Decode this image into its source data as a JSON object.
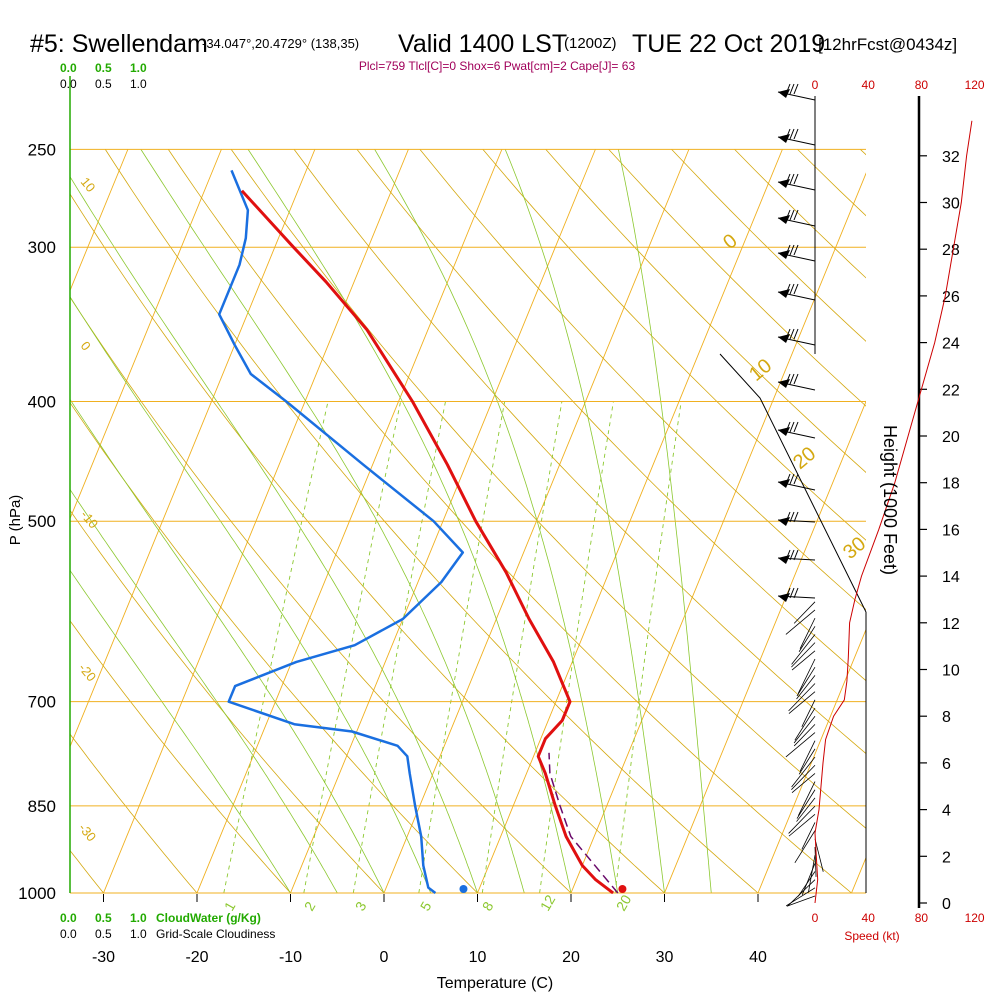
{
  "header": {
    "title": "#5: Swellendam",
    "coords": "-34.047°,20.4729° (138,35)",
    "valid": "Valid 1400 LST",
    "zulu": "(1200Z)",
    "date": "TUE 22 Oct 2019",
    "forecast": "[12hrFcst@0434z]",
    "params": "Plcl=759 Tlcl[C]=0 Shox=6 Pwat[cm]=2 Cape[J]= 63"
  },
  "cloud_scale": {
    "top_green": [
      "0.0",
      "0.5",
      "1.0"
    ],
    "top_black": [
      "0.0",
      "0.5",
      "1.0"
    ],
    "bottom_green": [
      "0.0",
      "0.5",
      "1.0"
    ],
    "bottom_green_label": "CloudWater (g/Kg)",
    "bottom_black": [
      "0.0",
      "0.5",
      "1.0"
    ],
    "bottom_black_label": "Grid-Scale Cloudiness"
  },
  "axes": {
    "xlabel": "Temperature (C)",
    "ylabel": "P (hPa)",
    "height_label": "Height (1000 Feet)",
    "speed_label": "Speed (kt)"
  },
  "colors": {
    "isotherm": "#f0b020",
    "dry_adiabat": "#d4a810",
    "moist_adiabat": "#8cc830",
    "mixing_ratio": "#8cc830",
    "temperature": "#e01010",
    "dewpoint": "#1a6fe0",
    "parcel": "#6a0a6a",
    "speed": "#cc0000",
    "title_params": "#a0005a"
  },
  "chart_data": {
    "type": "skew-t",
    "pressure_ticks": [
      "250",
      "300",
      "400",
      "500",
      "700",
      "850",
      "1000"
    ],
    "temp_ticks": [
      "-30",
      "-20",
      "-10",
      "0",
      "10",
      "20",
      "30",
      "40"
    ],
    "height_ticks": [
      "0",
      "2",
      "4",
      "6",
      "8",
      "10",
      "12",
      "14",
      "16",
      "18",
      "20",
      "22",
      "24",
      "26",
      "28",
      "30",
      "32"
    ],
    "speed_ticks": [
      "0",
      "40",
      "80",
      "120"
    ],
    "dry_adiabat_labels": [
      "10",
      "0",
      "-10",
      "-20",
      "-30",
      "0",
      "10",
      "20",
      "30"
    ],
    "mixing_ratio_labels": [
      "1",
      "2",
      "3",
      "5",
      "8",
      "12",
      "20"
    ],
    "temperature_profile": [
      {
        "p": 1000,
        "t": 24.5
      },
      {
        "p": 975,
        "t": 22
      },
      {
        "p": 950,
        "t": 20
      },
      {
        "p": 900,
        "t": 17
      },
      {
        "p": 850,
        "t": 14.5
      },
      {
        "p": 800,
        "t": 12
      },
      {
        "p": 775,
        "t": 10.5
      },
      {
        "p": 750,
        "t": 10.5
      },
      {
        "p": 725,
        "t": 11.5
      },
      {
        "p": 700,
        "t": 11.5
      },
      {
        "p": 650,
        "t": 8
      },
      {
        "p": 600,
        "t": 3.5
      },
      {
        "p": 550,
        "t": -1
      },
      {
        "p": 500,
        "t": -6.5
      },
      {
        "p": 450,
        "t": -12
      },
      {
        "p": 400,
        "t": -18.5
      },
      {
        "p": 350,
        "t": -26.5
      },
      {
        "p": 320,
        "t": -33
      },
      {
        "p": 300,
        "t": -38
      },
      {
        "p": 270,
        "t": -46
      }
    ],
    "dewpoint_profile": [
      {
        "p": 1000,
        "t": 5.5
      },
      {
        "p": 990,
        "t": 4.5
      },
      {
        "p": 950,
        "t": 3
      },
      {
        "p": 900,
        "t": 1.5
      },
      {
        "p": 850,
        "t": -0.5
      },
      {
        "p": 800,
        "t": -2.5
      },
      {
        "p": 775,
        "t": -3.5
      },
      {
        "p": 760,
        "t": -5
      },
      {
        "p": 740,
        "t": -10.5
      },
      {
        "p": 730,
        "t": -17
      },
      {
        "p": 700,
        "t": -25
      },
      {
        "p": 680,
        "t": -25
      },
      {
        "p": 650,
        "t": -19.5
      },
      {
        "p": 630,
        "t": -14
      },
      {
        "p": 600,
        "t": -10
      },
      {
        "p": 560,
        "t": -7.5
      },
      {
        "p": 530,
        "t": -6.5
      },
      {
        "p": 500,
        "t": -11
      },
      {
        "p": 450,
        "t": -21
      },
      {
        "p": 400,
        "t": -32
      },
      {
        "p": 380,
        "t": -37
      },
      {
        "p": 360,
        "t": -40
      },
      {
        "p": 340,
        "t": -43
      },
      {
        "p": 310,
        "t": -43
      },
      {
        "p": 295,
        "t": -43.5
      },
      {
        "p": 280,
        "t": -44.5
      },
      {
        "p": 260,
        "t": -48
      }
    ],
    "parcel_profile": [
      {
        "p": 1000,
        "t": 25
      },
      {
        "p": 900,
        "t": 17.5
      },
      {
        "p": 850,
        "t": 15
      },
      {
        "p": 800,
        "t": 12.5
      },
      {
        "p": 770,
        "t": 11.5
      }
    ],
    "surface_temp": 25.5,
    "surface_dewpoint": 8.5,
    "speed_profile": [
      {
        "h": 0,
        "s": 0
      },
      {
        "h": 1,
        "s": 2
      },
      {
        "h": 2,
        "s": 1
      },
      {
        "h": 3,
        "s": 0
      },
      {
        "h": 4,
        "s": 3
      },
      {
        "h": 6,
        "s": 6
      },
      {
        "h": 7,
        "s": 8
      },
      {
        "h": 8,
        "s": 14
      },
      {
        "h": 8.7,
        "s": 22
      },
      {
        "h": 9.5,
        "s": 24
      },
      {
        "h": 10.5,
        "s": 25
      },
      {
        "h": 12,
        "s": 26
      },
      {
        "h": 13,
        "s": 30
      },
      {
        "h": 14,
        "s": 35
      },
      {
        "h": 16,
        "s": 48
      },
      {
        "h": 18,
        "s": 60
      },
      {
        "h": 20,
        "s": 70
      },
      {
        "h": 22,
        "s": 80
      },
      {
        "h": 24,
        "s": 90
      },
      {
        "h": 26,
        "s": 98
      },
      {
        "h": 28,
        "s": 104
      },
      {
        "h": 30,
        "s": 110
      },
      {
        "h": 32,
        "s": 114
      },
      {
        "h": 33.5,
        "s": 118
      }
    ]
  }
}
